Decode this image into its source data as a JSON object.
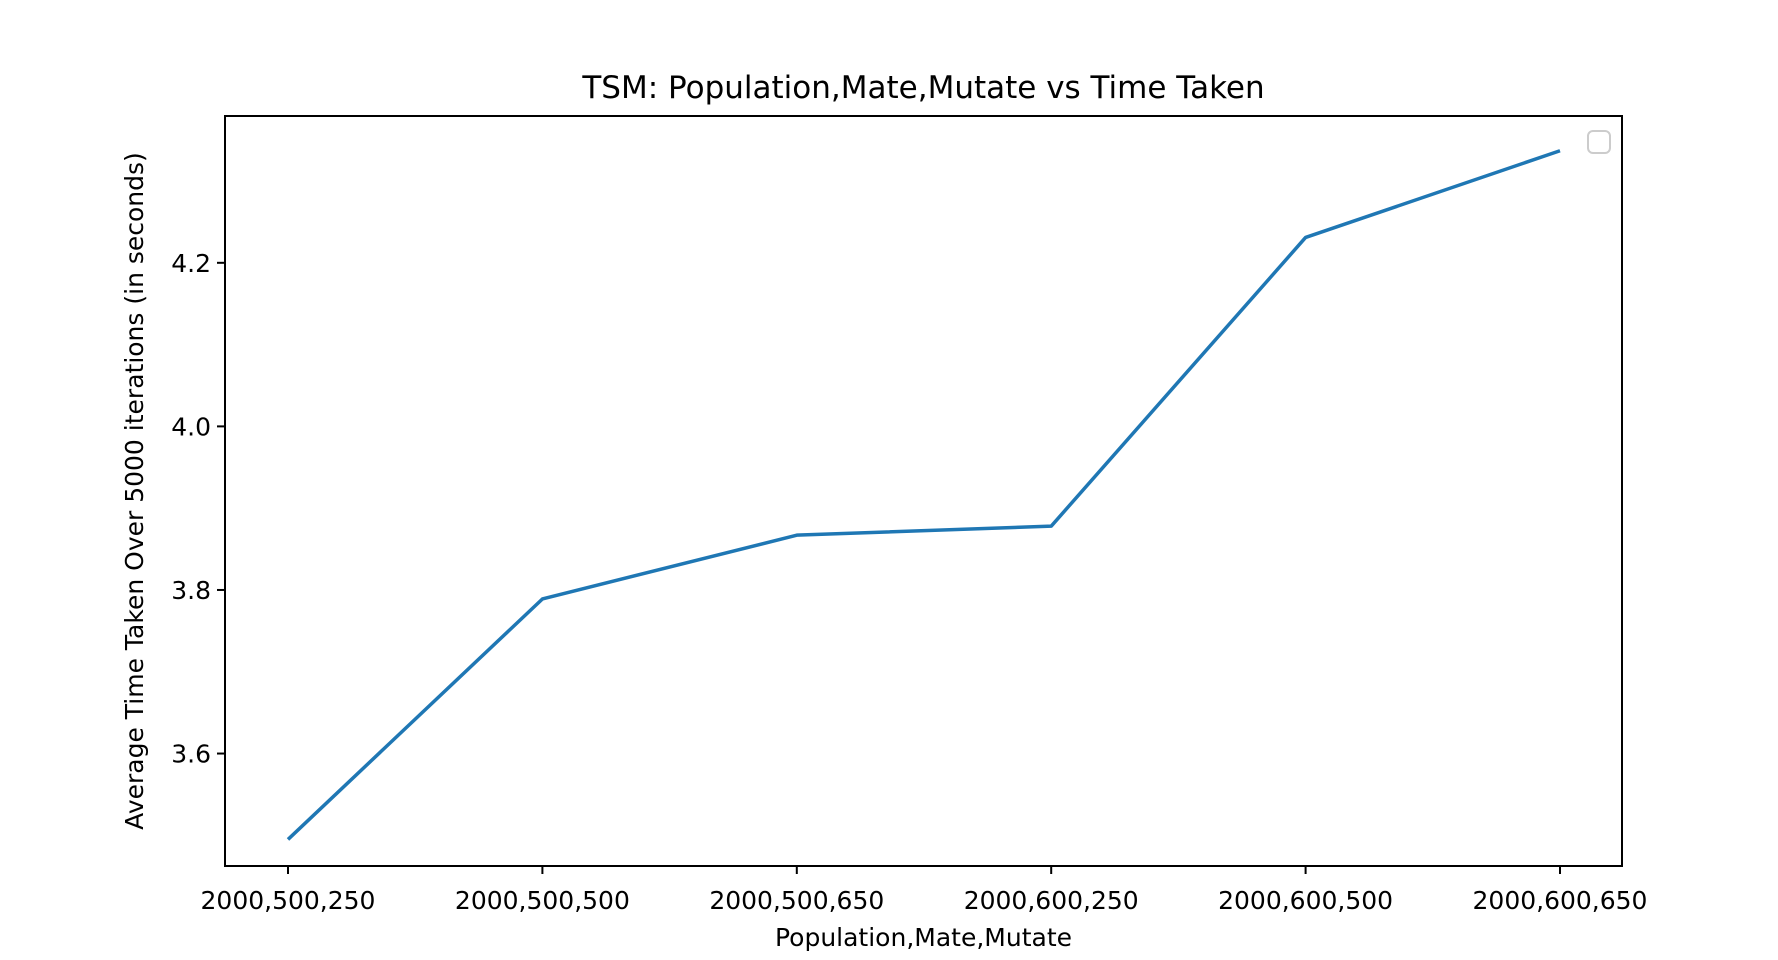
{
  "chart_data": {
    "type": "line",
    "title": "TSM: Population,Mate,Mutate vs Time Taken",
    "xlabel": "Population,Mate,Mutate",
    "ylabel": "Average Time Taken Over 5000 iterations (in seconds)",
    "categories": [
      "2000,500,250",
      "2000,500,500",
      "2000,500,650",
      "2000,600,250",
      "2000,600,500",
      "2000,600,650"
    ],
    "series": [
      {
        "values": [
          3.495,
          3.789,
          3.867,
          3.878,
          4.231,
          4.337
        ],
        "color": "#1f77b4"
      }
    ],
    "yticks": [
      3.6,
      3.8,
      4.0,
      4.2
    ],
    "ytick_labels": [
      "3.6",
      "3.8",
      "4.0",
      "4.2"
    ],
    "ylim": [
      3.4625,
      4.3795
    ],
    "grid": false,
    "legend": {
      "placement": "top-right",
      "entries": []
    }
  }
}
